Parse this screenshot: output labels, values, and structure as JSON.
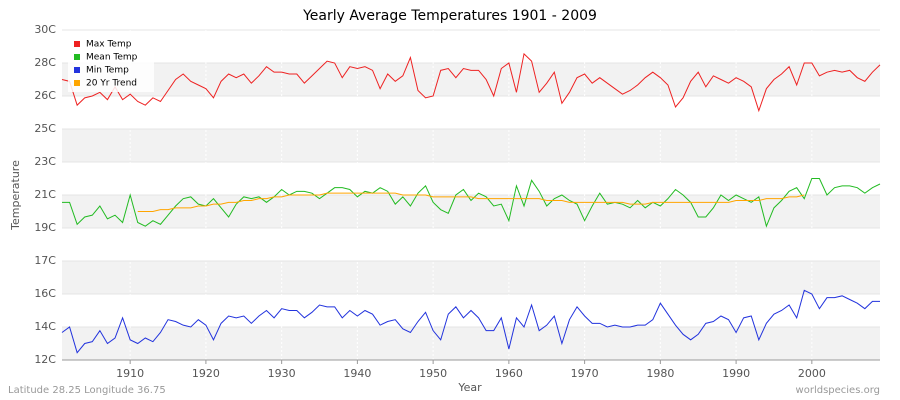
{
  "chart_data": {
    "type": "line",
    "title": "Yearly Average Temperatures 1901 - 2009",
    "x_label": "Year",
    "y_label": "Temperature",
    "footer_left": "Latitude 28.25 Longitude 36.75",
    "footer_right": "worldspecies.org",
    "legend": "upper left",
    "grid": true,
    "xlim": [
      1901,
      2009
    ],
    "xticks": [
      1910,
      1920,
      1930,
      1940,
      1950,
      1960,
      1970,
      1980,
      1990,
      2000
    ],
    "ylim": [
      12,
      30
    ],
    "yticks": [
      {
        "value": 12,
        "label": "12C"
      },
      {
        "value": 13.8,
        "label": "14C"
      },
      {
        "value": 15.6,
        "label": "16C"
      },
      {
        "value": 17.4,
        "label": "17C"
      },
      {
        "value": 19.2,
        "label": "19C"
      },
      {
        "value": 21,
        "label": "21C"
      },
      {
        "value": 22.8,
        "label": "23C"
      },
      {
        "value": 24.6,
        "label": "25C"
      },
      {
        "value": 26.4,
        "label": "26C"
      },
      {
        "value": 28.2,
        "label": "28C"
      },
      {
        "value": 30,
        "label": "30C"
      }
    ],
    "x": [
      1901,
      1902,
      1903,
      1904,
      1905,
      1906,
      1907,
      1908,
      1909,
      1910,
      1911,
      1912,
      1913,
      1914,
      1915,
      1916,
      1917,
      1918,
      1919,
      1920,
      1921,
      1922,
      1923,
      1924,
      1925,
      1926,
      1927,
      1928,
      1929,
      1930,
      1931,
      1932,
      1933,
      1934,
      1935,
      1936,
      1937,
      1938,
      1939,
      1940,
      1941,
      1942,
      1943,
      1944,
      1945,
      1946,
      1947,
      1948,
      1949,
      1950,
      1951,
      1952,
      1953,
      1954,
      1955,
      1956,
      1957,
      1958,
      1959,
      1960,
      1961,
      1962,
      1963,
      1964,
      1965,
      1966,
      1967,
      1968,
      1969,
      1970,
      1971,
      1972,
      1973,
      1974,
      1975,
      1976,
      1977,
      1978,
      1979,
      1980,
      1981,
      1982,
      1983,
      1984,
      1985,
      1986,
      1987,
      1988,
      1989,
      1990,
      1991,
      1992,
      1993,
      1994,
      1995,
      1996,
      1997,
      1998,
      1999,
      2000,
      2001,
      2002,
      2003,
      2004,
      2005,
      2006,
      2007,
      2008,
      2009
    ],
    "series": [
      {
        "name": "Max Temp",
        "color": "#ee2222",
        "values": [
          27.3,
          27.2,
          25.9,
          26.3,
          26.4,
          26.6,
          26.2,
          26.9,
          26.2,
          26.5,
          26.1,
          25.9,
          26.3,
          26.1,
          26.7,
          27.3,
          27.6,
          27.2,
          27.0,
          26.8,
          26.3,
          27.2,
          27.6,
          27.4,
          27.6,
          27.1,
          27.5,
          28.0,
          27.7,
          27.7,
          27.6,
          27.6,
          27.1,
          27.5,
          27.9,
          28.3,
          28.2,
          27.4,
          28.0,
          27.9,
          28.0,
          27.8,
          26.8,
          27.6,
          27.2,
          27.5,
          28.5,
          26.7,
          26.3,
          26.4,
          27.8,
          27.9,
          27.4,
          27.9,
          27.8,
          27.8,
          27.3,
          26.4,
          27.9,
          28.2,
          26.6,
          28.7,
          28.3,
          26.6,
          27.1,
          27.7,
          26.0,
          26.6,
          27.4,
          27.6,
          27.1,
          27.4,
          27.1,
          26.8,
          26.5,
          26.7,
          27.0,
          27.4,
          27.7,
          27.4,
          27.0,
          25.8,
          26.3,
          27.2,
          27.7,
          26.9,
          27.5,
          27.3,
          27.1,
          27.4,
          27.2,
          26.9,
          25.6,
          26.8,
          27.3,
          27.6,
          28.0,
          27.0,
          28.2,
          28.2,
          27.5,
          27.7,
          27.8,
          27.7,
          27.8,
          27.4,
          27.2,
          27.7,
          28.1
        ]
      },
      {
        "name": "Mean Temp",
        "color": "#22bb22",
        "values": [
          20.6,
          20.6,
          19.4,
          19.8,
          19.9,
          20.4,
          19.7,
          19.9,
          19.5,
          21.0,
          19.5,
          19.3,
          19.6,
          19.4,
          19.9,
          20.4,
          20.8,
          20.9,
          20.5,
          20.4,
          20.8,
          20.3,
          19.8,
          20.5,
          20.9,
          20.8,
          20.9,
          20.6,
          20.9,
          21.3,
          21.0,
          21.2,
          21.2,
          21.1,
          20.8,
          21.1,
          21.4,
          21.4,
          21.3,
          20.9,
          21.2,
          21.1,
          21.4,
          21.2,
          20.5,
          20.9,
          20.4,
          21.1,
          21.5,
          20.6,
          20.2,
          20.0,
          21.0,
          21.3,
          20.7,
          21.1,
          20.9,
          20.4,
          20.5,
          19.6,
          21.5,
          20.4,
          21.8,
          21.2,
          20.4,
          20.8,
          21.0,
          20.7,
          20.5,
          19.6,
          20.4,
          21.1,
          20.5,
          20.6,
          20.5,
          20.3,
          20.7,
          20.3,
          20.6,
          20.4,
          20.8,
          21.3,
          21.0,
          20.6,
          19.8,
          19.8,
          20.3,
          21.0,
          20.7,
          21.0,
          20.8,
          20.6,
          20.9,
          19.3,
          20.3,
          20.7,
          21.2,
          21.4,
          20.8,
          21.9,
          21.9,
          21.0,
          21.4,
          21.5,
          21.5,
          21.4,
          21.1,
          21.4,
          21.6
        ]
      },
      {
        "name": "Min Temp",
        "color": "#2233dd",
        "values": [
          13.5,
          13.8,
          12.4,
          12.9,
          13.0,
          13.6,
          12.9,
          13.2,
          14.3,
          13.1,
          12.9,
          13.2,
          13.0,
          13.5,
          14.2,
          14.1,
          13.9,
          13.8,
          14.2,
          13.9,
          13.1,
          14.0,
          14.4,
          14.3,
          14.4,
          14.0,
          14.4,
          14.7,
          14.3,
          14.8,
          14.7,
          14.7,
          14.3,
          14.6,
          15.0,
          14.9,
          14.9,
          14.3,
          14.7,
          14.4,
          14.7,
          14.5,
          13.9,
          14.1,
          14.2,
          13.7,
          13.5,
          14.1,
          14.6,
          13.6,
          13.1,
          14.5,
          14.9,
          14.3,
          14.7,
          14.3,
          13.6,
          13.6,
          14.3,
          12.6,
          14.3,
          13.8,
          15.0,
          13.6,
          13.9,
          14.4,
          12.9,
          14.2,
          14.9,
          14.4,
          14.0,
          14.0,
          13.8,
          13.9,
          13.8,
          13.8,
          13.9,
          13.9,
          14.2,
          15.1,
          14.5,
          13.9,
          13.4,
          13.1,
          13.4,
          14.0,
          14.1,
          14.4,
          14.2,
          13.5,
          14.3,
          14.4,
          13.1,
          14.0,
          14.5,
          14.7,
          15.0,
          14.3,
          15.8,
          15.6,
          14.8,
          15.4,
          15.4,
          15.5,
          15.3,
          15.1,
          14.8,
          15.2,
          15.2
        ]
      },
      {
        "name": "20 Yr Trend",
        "color": "#ffa500",
        "values": [
          null,
          null,
          null,
          null,
          null,
          null,
          null,
          null,
          null,
          null,
          20.1,
          20.1,
          20.1,
          20.2,
          20.2,
          20.3,
          20.3,
          20.3,
          20.4,
          20.4,
          20.5,
          20.5,
          20.6,
          20.6,
          20.7,
          20.7,
          20.8,
          20.8,
          20.9,
          20.9,
          21.0,
          21.0,
          21.0,
          21.0,
          21.0,
          21.1,
          21.1,
          21.1,
          21.1,
          21.1,
          21.1,
          21.1,
          21.1,
          21.1,
          21.1,
          21.0,
          21.0,
          21.0,
          21.0,
          20.9,
          20.9,
          20.9,
          20.9,
          20.9,
          20.9,
          20.8,
          20.8,
          20.8,
          20.8,
          20.8,
          20.8,
          20.8,
          20.8,
          20.8,
          20.7,
          20.7,
          20.7,
          20.6,
          20.6,
          20.6,
          20.6,
          20.6,
          20.6,
          20.6,
          20.6,
          20.5,
          20.5,
          20.5,
          20.6,
          20.6,
          20.6,
          20.6,
          20.6,
          20.6,
          20.6,
          20.6,
          20.6,
          20.6,
          20.6,
          20.7,
          20.7,
          20.7,
          20.7,
          20.8,
          20.8,
          20.8,
          20.9,
          20.9,
          21.0,
          null,
          null,
          null,
          null,
          null,
          null,
          null,
          null,
          null,
          null
        ]
      }
    ]
  }
}
